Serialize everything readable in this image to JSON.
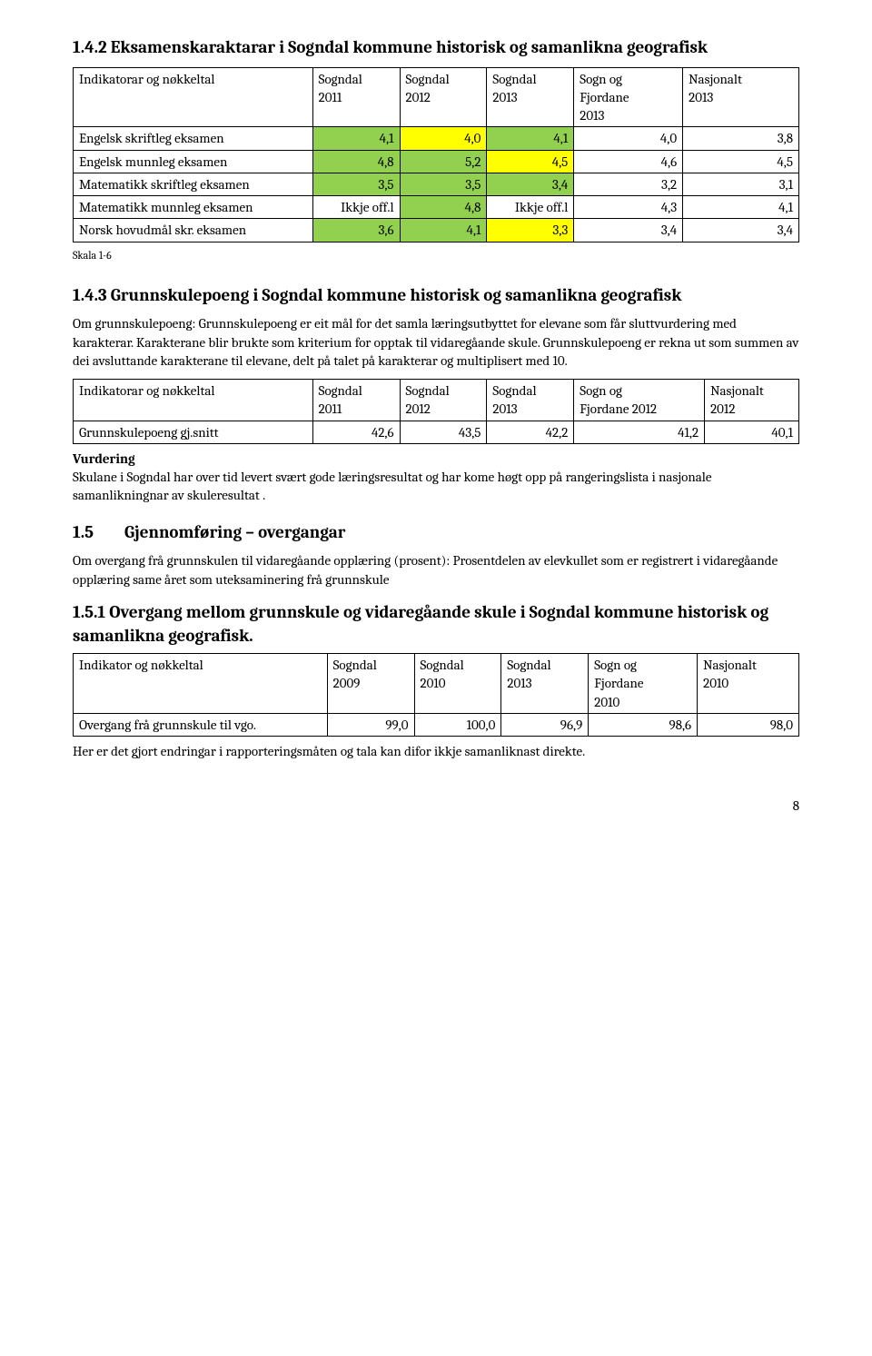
{
  "colors": {
    "green": "#92d050",
    "yellow": "#ffff00",
    "white": "#ffffff",
    "border": "#000000"
  },
  "sec142": {
    "heading": "1.4.2  Eksamenskaraktarar i Sogndal kommune historisk og samanlikna geografisk",
    "columns": [
      "Indikatorar og nøkkeltal",
      "Sogndal 2011",
      "Sogndal 2012",
      "Sogndal 2013",
      "Sogn og Fjordane 2013",
      "Nasjonalt 2013"
    ],
    "rows": [
      {
        "label": "Engelsk skriftleg eksamen",
        "vals": [
          "4,1",
          "4,0",
          "4,1",
          "4,0",
          "3,8"
        ],
        "colors": [
          "green",
          "yellow",
          "green",
          "white",
          "white"
        ]
      },
      {
        "label": "Engelsk munnleg eksamen",
        "vals": [
          "4,8",
          "5,2",
          "4,5",
          "4,6",
          "4,5"
        ],
        "colors": [
          "green",
          "green",
          "yellow",
          "white",
          "white"
        ]
      },
      {
        "label": "Matematikk skriftleg eksamen",
        "vals": [
          "3,5",
          "3,5",
          "3,4",
          "3,2",
          "3,1"
        ],
        "colors": [
          "green",
          "green",
          "green",
          "white",
          "white"
        ]
      },
      {
        "label": "Matematikk munnleg eksamen",
        "vals": [
          "Ikkje off.l",
          "4,8",
          "Ikkje off.l",
          "4,3",
          "4,1"
        ],
        "colors": [
          "white",
          "green",
          "white",
          "white",
          "white"
        ]
      },
      {
        "label": "Norsk hovudmål skr. eksamen",
        "vals": [
          "3,6",
          "4,1",
          "3,3",
          "3,4",
          "3,4"
        ],
        "colors": [
          "green",
          "green",
          "yellow",
          "white",
          "white"
        ]
      }
    ],
    "note": "Skala 1-6"
  },
  "sec143": {
    "heading": "1.4.3  Grunnskulepoeng i Sogndal kommune historisk og samanlikna geografisk",
    "intro": "Om grunnskulepoeng: Grunnskulepoeng er eit mål for det samla læringsutbyttet for elevane som får sluttvurdering med karakterar. Karakterane blir brukte som kriterium for opptak til vidaregåande skule. Grunnskulepoeng er rekna ut som summen av dei avsluttande karakterane til elevane, delt på talet på karakterar og multiplisert med 10.",
    "columns": [
      "Indikatorar og nøkkeltal",
      "Sogndal 2011",
      "Sogndal 2012",
      "Sogndal 2013",
      "Sogn og Fjordane 2012",
      "Nasjonalt 2012"
    ],
    "row": {
      "label": "Grunnskulepoeng gj.snitt",
      "vals": [
        "42,6",
        "43,5",
        "42,2",
        "41,2",
        "40,1"
      ]
    },
    "vurdering_label": "Vurdering",
    "vurdering_text": "Skulane i Sogndal har over tid levert svært gode læringsresultat og har kome høgt opp på rangeringslista i nasjonale samanlikningnar av skuleresultat ."
  },
  "sec15": {
    "heading_num": "1.5",
    "heading_text": "Gjennomføring – overgangar",
    "intro": "Om overgang frå grunnskulen til vidaregåande opplæring (prosent): Prosentdelen av elevkullet som er registrert i vidaregåande opplæring same året som uteksaminering frå grunnskule"
  },
  "sec151": {
    "heading": "1.5.1 Overgang mellom grunnskule og vidaregåande skule i Sogndal kommune historisk og samanlikna geografisk.",
    "columns": [
      "Indikator og nøkkeltal",
      "Sogndal 2009",
      "Sogndal 2010",
      "Sogndal 2013",
      "Sogn og Fjordane 2010",
      "Nasjonalt 2010"
    ],
    "row": {
      "label": "Overgang frå grunnskule til vgo.",
      "vals": [
        "99,0",
        "100,0",
        "96,9",
        "98,6",
        "98,0"
      ]
    },
    "footnote": "Her er det gjort endringar i rapporteringsmåten og tala kan difor ikkje samanliknast direkte."
  },
  "page": "8"
}
